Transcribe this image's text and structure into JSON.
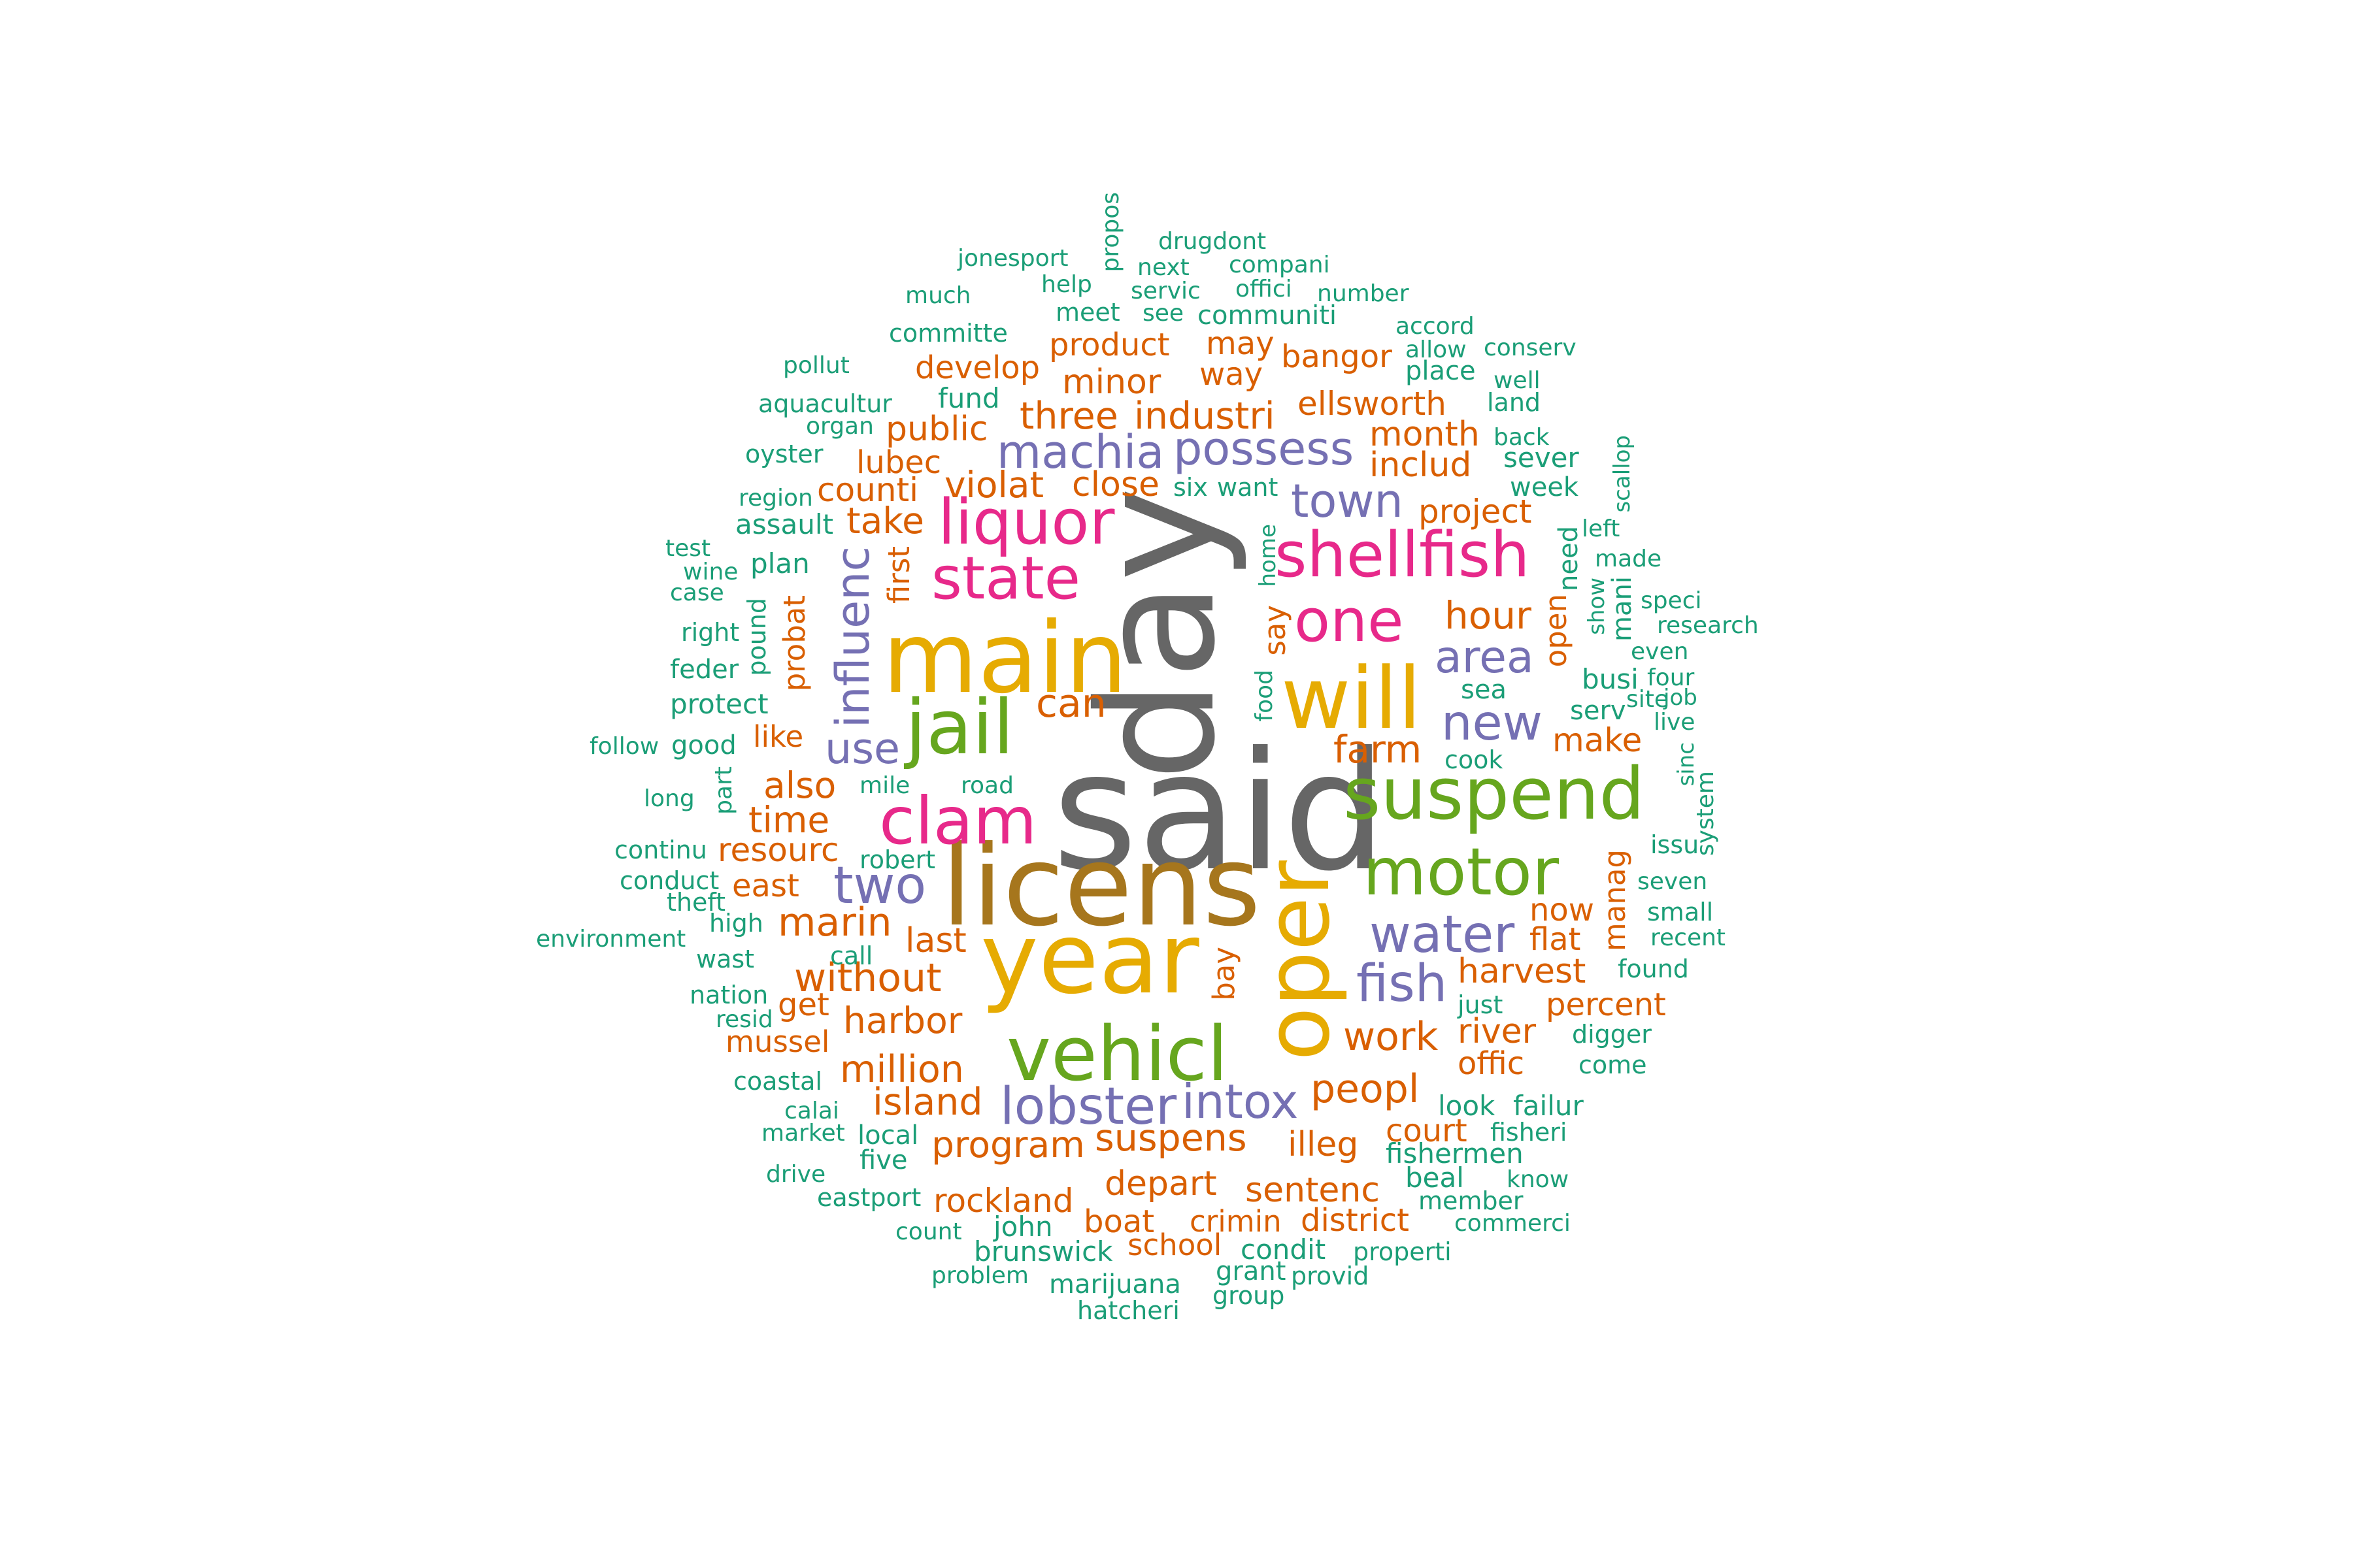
{
  "colors": {
    "teal": "#1b9e77",
    "orange": "#d95f02",
    "purple": "#7570b3",
    "pink": "#e7298a",
    "green": "#66a61e",
    "gold": "#e6ab02",
    "brown": "#a6761d",
    "gray": "#666666"
  },
  "words": [
    {
      "text": "said",
      "color": "gray"
    },
    {
      "text": "day",
      "color": "gray"
    },
    {
      "text": "licens",
      "color": "brown"
    },
    {
      "text": "main",
      "color": "gold"
    },
    {
      "text": "year",
      "color": "gold"
    },
    {
      "text": "oper",
      "color": "gold"
    },
    {
      "text": "will",
      "color": "gold"
    },
    {
      "text": "vehicl",
      "color": "green"
    },
    {
      "text": "jail",
      "color": "green"
    },
    {
      "text": "suspend",
      "color": "green"
    },
    {
      "text": "motor",
      "color": "green"
    },
    {
      "text": "clam",
      "color": "pink"
    },
    {
      "text": "liquor",
      "color": "pink"
    },
    {
      "text": "state",
      "color": "pink"
    },
    {
      "text": "shellfish",
      "color": "pink"
    },
    {
      "text": "one",
      "color": "pink"
    },
    {
      "text": "influenc",
      "color": "purple"
    },
    {
      "text": "machia",
      "color": "purple"
    },
    {
      "text": "possess",
      "color": "purple"
    },
    {
      "text": "town",
      "color": "purple"
    },
    {
      "text": "area",
      "color": "purple"
    },
    {
      "text": "new",
      "color": "purple"
    },
    {
      "text": "water",
      "color": "purple"
    },
    {
      "text": "fish",
      "color": "purple"
    },
    {
      "text": "two",
      "color": "purple"
    },
    {
      "text": "use",
      "color": "purple"
    },
    {
      "text": "lobster",
      "color": "purple"
    },
    {
      "text": "intox",
      "color": "purple"
    },
    {
      "text": "can",
      "color": "orange"
    },
    {
      "text": "hour",
      "color": "orange"
    },
    {
      "text": "farm",
      "color": "orange"
    },
    {
      "text": "make",
      "color": "orange"
    },
    {
      "text": "project",
      "color": "orange"
    },
    {
      "text": "month",
      "color": "orange"
    },
    {
      "text": "includ",
      "color": "orange"
    },
    {
      "text": "industri",
      "color": "orange"
    },
    {
      "text": "three",
      "color": "orange"
    },
    {
      "text": "violat",
      "color": "orange"
    },
    {
      "text": "close",
      "color": "orange"
    },
    {
      "text": "take",
      "color": "orange"
    },
    {
      "text": "counti",
      "color": "orange"
    },
    {
      "text": "public",
      "color": "orange"
    },
    {
      "text": "lubec",
      "color": "orange"
    },
    {
      "text": "develop",
      "color": "orange"
    },
    {
      "text": "product",
      "color": "orange"
    },
    {
      "text": "may",
      "color": "orange"
    },
    {
      "text": "way",
      "color": "orange"
    },
    {
      "text": "minor",
      "color": "orange"
    },
    {
      "text": "bangor",
      "color": "orange"
    },
    {
      "text": "ellsworth",
      "color": "orange"
    },
    {
      "text": "first",
      "color": "orange"
    },
    {
      "text": "probat",
      "color": "orange"
    },
    {
      "text": "like",
      "color": "orange"
    },
    {
      "text": "also",
      "color": "orange"
    },
    {
      "text": "time",
      "color": "orange"
    },
    {
      "text": "resourc",
      "color": "orange"
    },
    {
      "text": "east",
      "color": "orange"
    },
    {
      "text": "marin",
      "color": "orange"
    },
    {
      "text": "without",
      "color": "orange"
    },
    {
      "text": "last",
      "color": "orange"
    },
    {
      "text": "harbor",
      "color": "orange"
    },
    {
      "text": "get",
      "color": "orange"
    },
    {
      "text": "mussel",
      "color": "orange"
    },
    {
      "text": "million",
      "color": "orange"
    },
    {
      "text": "island",
      "color": "orange"
    },
    {
      "text": "program",
      "color": "orange"
    },
    {
      "text": "suspens",
      "color": "orange"
    },
    {
      "text": "rockland",
      "color": "orange"
    },
    {
      "text": "depart",
      "color": "orange"
    },
    {
      "text": "boat",
      "color": "orange"
    },
    {
      "text": "school",
      "color": "orange"
    },
    {
      "text": "crimin",
      "color": "orange"
    },
    {
      "text": "district",
      "color": "orange"
    },
    {
      "text": "sentenc",
      "color": "orange"
    },
    {
      "text": "illeg",
      "color": "orange"
    },
    {
      "text": "court",
      "color": "orange"
    },
    {
      "text": "peopl",
      "color": "orange"
    },
    {
      "text": "work",
      "color": "orange"
    },
    {
      "text": "offic",
      "color": "orange"
    },
    {
      "text": "river",
      "color": "orange"
    },
    {
      "text": "harvest",
      "color": "orange"
    },
    {
      "text": "percent",
      "color": "orange"
    },
    {
      "text": "flat",
      "color": "orange"
    },
    {
      "text": "now",
      "color": "orange"
    },
    {
      "text": "manag",
      "color": "orange"
    },
    {
      "text": "open",
      "color": "orange"
    },
    {
      "text": "say",
      "color": "orange"
    },
    {
      "text": "bay",
      "color": "orange"
    },
    {
      "text": "propos",
      "color": "teal"
    },
    {
      "text": "jonesport",
      "color": "teal"
    },
    {
      "text": "drugdont",
      "color": "teal"
    },
    {
      "text": "next",
      "color": "teal"
    },
    {
      "text": "compani",
      "color": "teal"
    },
    {
      "text": "much",
      "color": "teal"
    },
    {
      "text": "help",
      "color": "teal"
    },
    {
      "text": "servic",
      "color": "teal"
    },
    {
      "text": "offici",
      "color": "teal"
    },
    {
      "text": "number",
      "color": "teal"
    },
    {
      "text": "committe",
      "color": "teal"
    },
    {
      "text": "meet",
      "color": "teal"
    },
    {
      "text": "see",
      "color": "teal"
    },
    {
      "text": "communiti",
      "color": "teal"
    },
    {
      "text": "accord",
      "color": "teal"
    },
    {
      "text": "allow",
      "color": "teal"
    },
    {
      "text": "conserv",
      "color": "teal"
    },
    {
      "text": "pollut",
      "color": "teal"
    },
    {
      "text": "place",
      "color": "teal"
    },
    {
      "text": "well",
      "color": "teal"
    },
    {
      "text": "fund",
      "color": "teal"
    },
    {
      "text": "aquacultur",
      "color": "teal"
    },
    {
      "text": "land",
      "color": "teal"
    },
    {
      "text": "organ",
      "color": "teal"
    },
    {
      "text": "back",
      "color": "teal"
    },
    {
      "text": "oyster",
      "color": "teal"
    },
    {
      "text": "sever",
      "color": "teal"
    },
    {
      "text": "scallop",
      "color": "teal"
    },
    {
      "text": "six",
      "color": "teal"
    },
    {
      "text": "want",
      "color": "teal"
    },
    {
      "text": "week",
      "color": "teal"
    },
    {
      "text": "region",
      "color": "teal"
    },
    {
      "text": "assault",
      "color": "teal"
    },
    {
      "text": "left",
      "color": "teal"
    },
    {
      "text": "home",
      "color": "teal"
    },
    {
      "text": "need",
      "color": "teal"
    },
    {
      "text": "made",
      "color": "teal"
    },
    {
      "text": "test",
      "color": "teal"
    },
    {
      "text": "plan",
      "color": "teal"
    },
    {
      "text": "wine",
      "color": "teal"
    },
    {
      "text": "case",
      "color": "teal"
    },
    {
      "text": "show",
      "color": "teal"
    },
    {
      "text": "mani",
      "color": "teal"
    },
    {
      "text": "speci",
      "color": "teal"
    },
    {
      "text": "research",
      "color": "teal"
    },
    {
      "text": "right",
      "color": "teal"
    },
    {
      "text": "pound",
      "color": "teal"
    },
    {
      "text": "even",
      "color": "teal"
    },
    {
      "text": "feder",
      "color": "teal"
    },
    {
      "text": "four",
      "color": "teal"
    },
    {
      "text": "busi",
      "color": "teal"
    },
    {
      "text": "sea",
      "color": "teal"
    },
    {
      "text": "site",
      "color": "teal"
    },
    {
      "text": "job",
      "color": "teal"
    },
    {
      "text": "protect",
      "color": "teal"
    },
    {
      "text": "serv",
      "color": "teal"
    },
    {
      "text": "food",
      "color": "teal"
    },
    {
      "text": "live",
      "color": "teal"
    },
    {
      "text": "follow",
      "color": "teal"
    },
    {
      "text": "good",
      "color": "teal"
    },
    {
      "text": "cook",
      "color": "teal"
    },
    {
      "text": "sinc",
      "color": "teal"
    },
    {
      "text": "mile",
      "color": "teal"
    },
    {
      "text": "road",
      "color": "teal"
    },
    {
      "text": "system",
      "color": "teal"
    },
    {
      "text": "long",
      "color": "teal"
    },
    {
      "text": "part",
      "color": "teal"
    },
    {
      "text": "issu",
      "color": "teal"
    },
    {
      "text": "continu",
      "color": "teal"
    },
    {
      "text": "robert",
      "color": "teal"
    },
    {
      "text": "conduct",
      "color": "teal"
    },
    {
      "text": "seven",
      "color": "teal"
    },
    {
      "text": "theft",
      "color": "teal"
    },
    {
      "text": "small",
      "color": "teal"
    },
    {
      "text": "high",
      "color": "teal"
    },
    {
      "text": "recent",
      "color": "teal"
    },
    {
      "text": "environment",
      "color": "teal"
    },
    {
      "text": "wast",
      "color": "teal"
    },
    {
      "text": "call",
      "color": "teal"
    },
    {
      "text": "found",
      "color": "teal"
    },
    {
      "text": "nation",
      "color": "teal"
    },
    {
      "text": "just",
      "color": "teal"
    },
    {
      "text": "resid",
      "color": "teal"
    },
    {
      "text": "digger",
      "color": "teal"
    },
    {
      "text": "come",
      "color": "teal"
    },
    {
      "text": "coastal",
      "color": "teal"
    },
    {
      "text": "look",
      "color": "teal"
    },
    {
      "text": "failur",
      "color": "teal"
    },
    {
      "text": "calai",
      "color": "teal"
    },
    {
      "text": "market",
      "color": "teal"
    },
    {
      "text": "local",
      "color": "teal"
    },
    {
      "text": "fisheri",
      "color": "teal"
    },
    {
      "text": "fishermen",
      "color": "teal"
    },
    {
      "text": "five",
      "color": "teal"
    },
    {
      "text": "drive",
      "color": "teal"
    },
    {
      "text": "beal",
      "color": "teal"
    },
    {
      "text": "know",
      "color": "teal"
    },
    {
      "text": "eastport",
      "color": "teal"
    },
    {
      "text": "member",
      "color": "teal"
    },
    {
      "text": "john",
      "color": "teal"
    },
    {
      "text": "commerci",
      "color": "teal"
    },
    {
      "text": "count",
      "color": "teal"
    },
    {
      "text": "condit",
      "color": "teal"
    },
    {
      "text": "properti",
      "color": "teal"
    },
    {
      "text": "brunswick",
      "color": "teal"
    },
    {
      "text": "problem",
      "color": "teal"
    },
    {
      "text": "grant",
      "color": "teal"
    },
    {
      "text": "provid",
      "color": "teal"
    },
    {
      "text": "marijuana",
      "color": "teal"
    },
    {
      "text": "group",
      "color": "teal"
    },
    {
      "text": "hatcheri",
      "color": "teal"
    }
  ]
}
